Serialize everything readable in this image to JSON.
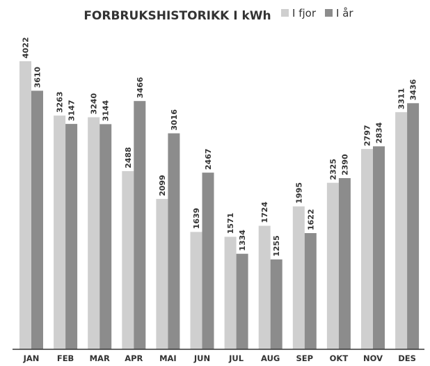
{
  "chart_data": {
    "type": "bar",
    "title": "FORBRUKSHISTORIKK I kWh",
    "categories": [
      "JAN",
      "FEB",
      "MAR",
      "APR",
      "MAI",
      "JUN",
      "JUL",
      "AUG",
      "SEP",
      "OKT",
      "NOV",
      "DES"
    ],
    "series": [
      {
        "name": "I fjor",
        "color": "#cfcfcf",
        "values": [
          4022,
          3263,
          3240,
          2488,
          2099,
          1639,
          1571,
          1724,
          1995,
          2325,
          2797,
          3311
        ]
      },
      {
        "name": "I år",
        "color": "#8c8c8c",
        "values": [
          3610,
          3147,
          3144,
          3466,
          3016,
          2467,
          1334,
          1255,
          1622,
          2390,
          2834,
          3436
        ]
      }
    ],
    "ylim": [
      0,
      4100
    ],
    "grid": false,
    "legend": "top",
    "xlabel": "",
    "ylabel": ""
  }
}
